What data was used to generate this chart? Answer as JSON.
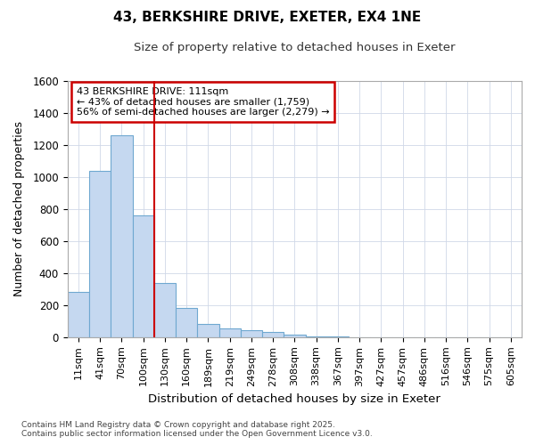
{
  "title": "43, BERKSHIRE DRIVE, EXETER, EX4 1NE",
  "subtitle": "Size of property relative to detached houses in Exeter",
  "xlabel": "Distribution of detached houses by size in Exeter",
  "ylabel": "Number of detached properties",
  "categories": [
    "11sqm",
    "41sqm",
    "70sqm",
    "100sqm",
    "130sqm",
    "160sqm",
    "189sqm",
    "219sqm",
    "249sqm",
    "278sqm",
    "308sqm",
    "338sqm",
    "367sqm",
    "397sqm",
    "427sqm",
    "457sqm",
    "486sqm",
    "516sqm",
    "546sqm",
    "575sqm",
    "605sqm"
  ],
  "values": [
    285,
    1040,
    1260,
    760,
    340,
    185,
    85,
    55,
    45,
    30,
    15,
    5,
    2,
    1,
    1,
    0,
    0,
    0,
    0,
    0,
    0
  ],
  "bar_color": "#c5d8f0",
  "bar_edgecolor": "#6fa8d0",
  "property_label": "43 BERKSHIRE DRIVE: 111sqm",
  "annotation_line1": "← 43% of detached houses are smaller (1,759)",
  "annotation_line2": "56% of semi-detached houses are larger (2,279) →",
  "annotation_box_facecolor": "#ffffff",
  "annotation_border_color": "#cc0000",
  "vline_color": "#cc0000",
  "vline_x": 3.5,
  "ylim": [
    0,
    1600
  ],
  "yticks": [
    0,
    200,
    400,
    600,
    800,
    1000,
    1200,
    1400,
    1600
  ],
  "grid_color": "#d0d8e8",
  "plot_bg_color": "#ffffff",
  "fig_bg_color": "#ffffff",
  "footer_line1": "Contains HM Land Registry data © Crown copyright and database right 2025.",
  "footer_line2": "Contains public sector information licensed under the Open Government Licence v3.0."
}
